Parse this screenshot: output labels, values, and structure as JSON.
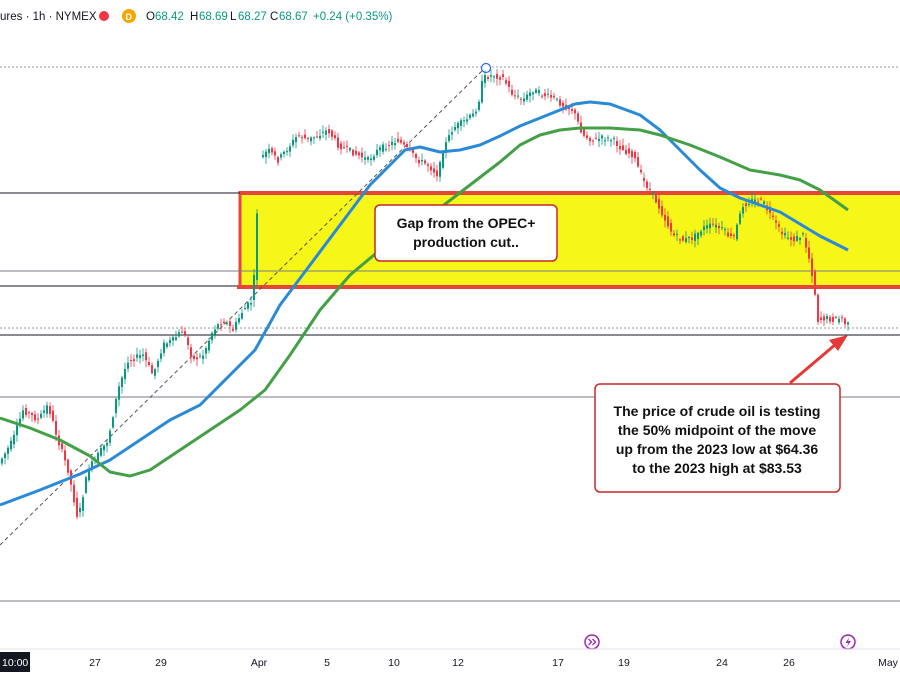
{
  "header": {
    "instrument": "ures · 1h · NYMEX",
    "open_label": "O",
    "open": "68.42",
    "high_label": "H",
    "high": "68.69",
    "low_label": "L",
    "low": "68.27",
    "close_label": "C",
    "close": "68.67",
    "change": "+0.24 (+0.35%)",
    "badge": "D"
  },
  "chart_data": {
    "type": "line",
    "xlabel": "",
    "ylabel": "",
    "x_ticks": [
      "27",
      "29",
      "Apr",
      "5",
      "10",
      "12",
      "17",
      "19",
      "24",
      "26",
      "May"
    ],
    "time_label": "10:00",
    "levels": {
      "high_2023": 83.53,
      "low_2023": 64.36,
      "midpoint_50": 73.945
    },
    "gap_zone": {
      "label": "Gap from the OPEC+ production cut..",
      "color": "#f5f500",
      "border": "#e5453a"
    },
    "series": [
      {
        "name": "",
        "color": "#2196f3",
        "kind": "moving-average-fast"
      },
      {
        "name": "",
        "color": "#43a047",
        "kind": "moving-average-slow"
      },
      {
        "name": "",
        "kind": "hourly-candles",
        "up_color": "#089981",
        "down_color": "#f23645"
      }
    ]
  },
  "annotations": {
    "gap_label_line1": "Gap from the OPEC+",
    "gap_label_line2": "production cut..",
    "test_label_line1": "The price of crude oil is testing",
    "test_label_line2": "the 50% midpoint of the move",
    "test_label_line3": "up from the 2023 low at $64.36",
    "test_label_line4": "to the 2023 high at $83.53"
  },
  "colors": {
    "annotation_border": "#c62828",
    "arrow": "#e53935",
    "event_icon": "#9c27b0"
  }
}
